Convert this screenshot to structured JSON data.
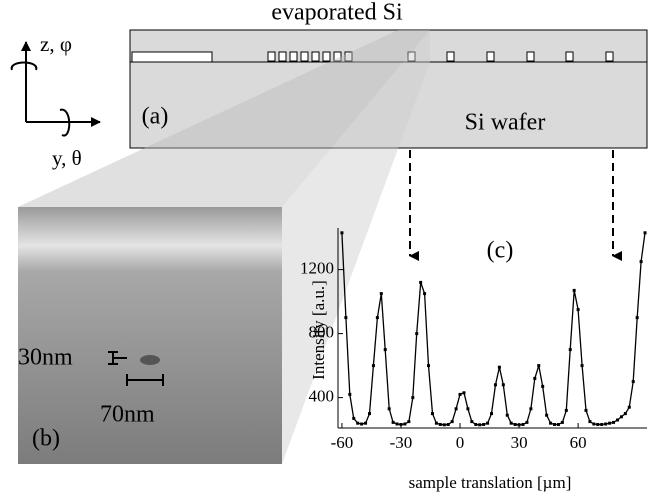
{
  "schematic": {
    "title": "evaporated Si",
    "axis_z": "z, φ",
    "axis_y": "y, θ",
    "panel": "(a)",
    "substrate": "Si wafer"
  },
  "image": {
    "height_label": "30nm",
    "width_label": "70nm",
    "panel": "(b)"
  },
  "chart_data": {
    "type": "line",
    "annotation": "(c)",
    "x_label": "sample translation [µm]",
    "y_label": "Intensity [a.u.]",
    "color": "#000000",
    "x": [
      -60,
      -58,
      -56,
      -54,
      -52,
      -50,
      -48,
      -46,
      -44,
      -42,
      -40,
      -38,
      -36,
      -34,
      -32,
      -30,
      -28,
      -26,
      -24,
      -22,
      -20,
      -18,
      -16,
      -14,
      -12,
      -10,
      -8,
      -6,
      -4,
      -2,
      0,
      2,
      4,
      6,
      8,
      10,
      12,
      14,
      16,
      18,
      20,
      22,
      24,
      26,
      28,
      30,
      32,
      34,
      36,
      38,
      40,
      42,
      44,
      46,
      48,
      50,
      52,
      54,
      56,
      58,
      60,
      62,
      64,
      66,
      68,
      70,
      72,
      74,
      76,
      78,
      80,
      82,
      84,
      86,
      88,
      90,
      92,
      94
    ],
    "values": [
      1430,
      900,
      420,
      270,
      240,
      235,
      240,
      300,
      600,
      900,
      1050,
      700,
      330,
      245,
      235,
      232,
      235,
      250,
      400,
      800,
      1120,
      1050,
      600,
      300,
      240,
      232,
      230,
      232,
      250,
      330,
      420,
      430,
      330,
      250,
      232,
      230,
      232,
      240,
      300,
      480,
      590,
      480,
      290,
      240,
      232,
      230,
      232,
      245,
      330,
      520,
      600,
      470,
      290,
      240,
      232,
      232,
      245,
      320,
      700,
      1070,
      950,
      600,
      320,
      250,
      235,
      232,
      232,
      235,
      240,
      245,
      260,
      280,
      300,
      340,
      500,
      900,
      1250,
      1430
    ],
    "xlim": [
      -62,
      95
    ],
    "ylim": [
      210,
      1460
    ],
    "xticks": [
      -60,
      -30,
      0,
      30,
      60
    ],
    "yticks": [
      400,
      800,
      1200
    ]
  }
}
